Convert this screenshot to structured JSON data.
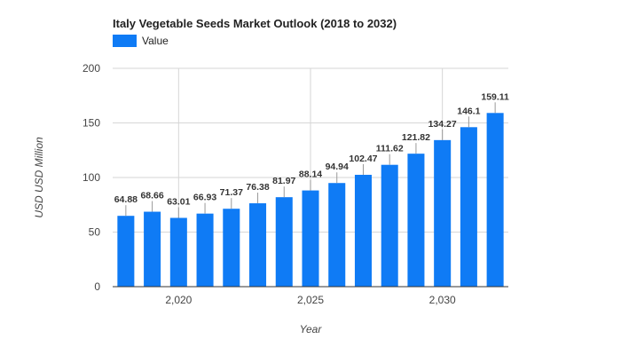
{
  "chart_data": {
    "type": "bar",
    "title": "Italy Vegetable Seeds Market Outlook (2018 to 2032)",
    "xlabel": "Year",
    "ylabel": "USD USD Million",
    "categories": [
      2018,
      2019,
      2020,
      2021,
      2022,
      2023,
      2024,
      2025,
      2026,
      2027,
      2028,
      2029,
      2030,
      2031,
      2032
    ],
    "series": [
      {
        "name": "Value",
        "values": [
          64.88,
          68.66,
          63.01,
          66.93,
          71.37,
          76.38,
          81.97,
          88.14,
          94.94,
          102.47,
          111.62,
          121.82,
          134.27,
          146.1,
          159.11
        ]
      }
    ],
    "ylim": [
      0,
      200
    ],
    "yticks": [
      0,
      50,
      100,
      150,
      200
    ],
    "xticks": [
      2020,
      2025,
      2030
    ],
    "xtick_labels": [
      "2,020",
      "2,025",
      "2,030"
    ],
    "grid": true,
    "legend_position": "top-left",
    "bar_color": "#0f7bf5"
  }
}
